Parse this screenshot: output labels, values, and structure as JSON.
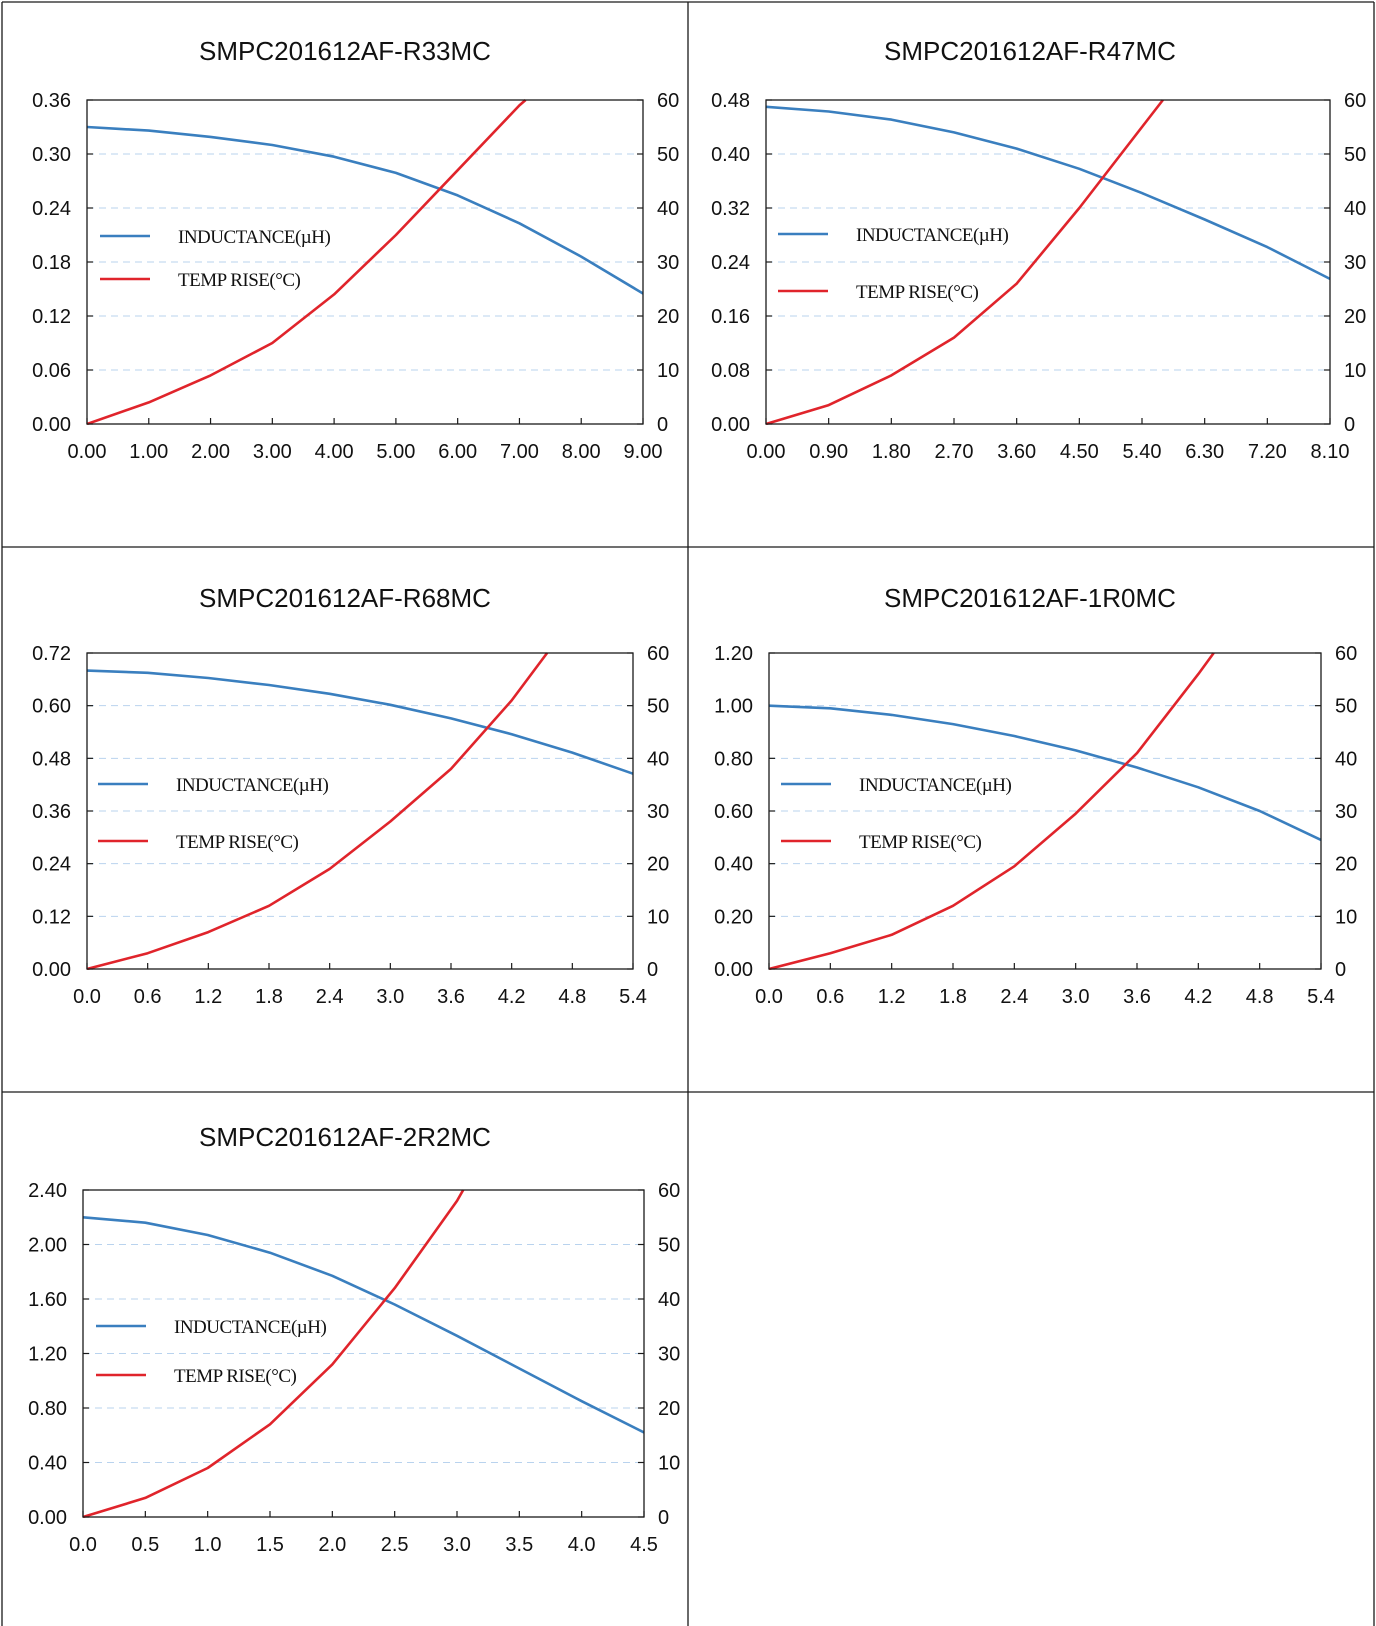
{
  "chart_data": [
    {
      "type": "line",
      "title": "SMPC201612AF-R33MC",
      "xlim": [
        0,
        9
      ],
      "x_ticks": [
        "0.00",
        "1.00",
        "2.00",
        "3.00",
        "4.00",
        "5.00",
        "6.00",
        "7.00",
        "8.00",
        "9.00"
      ],
      "ylim_left": [
        0,
        0.36
      ],
      "y_left_ticks": [
        "0.00",
        "0.06",
        "0.12",
        "0.18",
        "0.24",
        "0.30",
        "0.36"
      ],
      "ylim_right": [
        0,
        60
      ],
      "y_right_ticks": [
        "0",
        "10",
        "20",
        "30",
        "40",
        "50",
        "60"
      ],
      "legend": {
        "position": "left-middle",
        "inductance_label": "INDUCTANCE(µH)",
        "temp_label": "TEMP RISE(°C)"
      },
      "grid": "horizontal-dashed",
      "series": [
        {
          "name": "INDUCTANCE(µH)",
          "axis": "left",
          "color": "#3a7fbf",
          "x": [
            0,
            1,
            2,
            3,
            4,
            5,
            6,
            7,
            8,
            9
          ],
          "y": [
            0.33,
            0.326,
            0.319,
            0.31,
            0.297,
            0.279,
            0.254,
            0.223,
            0.186,
            0.145
          ]
        },
        {
          "name": "TEMP RISE(°C)",
          "axis": "right",
          "color": "#e0242b",
          "x": [
            0,
            1,
            2,
            3,
            4,
            5,
            6,
            7,
            7.1
          ],
          "y": [
            0,
            4,
            9,
            15,
            24,
            35,
            47,
            59,
            60
          ]
        }
      ]
    },
    {
      "type": "line",
      "title": "SMPC201612AF-R47MC",
      "xlim": [
        0,
        8.1
      ],
      "x_ticks": [
        "0.00",
        "0.90",
        "1.80",
        "2.70",
        "3.60",
        "4.50",
        "5.40",
        "6.30",
        "7.20",
        "8.10"
      ],
      "ylim_left": [
        0,
        0.48
      ],
      "y_left_ticks": [
        "0.00",
        "0.08",
        "0.16",
        "0.24",
        "0.32",
        "0.40",
        "0.48"
      ],
      "ylim_right": [
        0,
        60
      ],
      "y_right_ticks": [
        "0",
        "10",
        "20",
        "30",
        "40",
        "50",
        "60"
      ],
      "legend": {
        "position": "left-middle",
        "inductance_label": "INDUCTANCE(µH)",
        "temp_label": "TEMP RISE(°C)"
      },
      "grid": "horizontal-dashed",
      "series": [
        {
          "name": "INDUCTANCE(µH)",
          "axis": "left",
          "color": "#3a7fbf",
          "x": [
            0,
            0.9,
            1.8,
            2.7,
            3.6,
            4.5,
            5.4,
            6.3,
            7.2,
            8.1
          ],
          "y": [
            0.47,
            0.463,
            0.451,
            0.432,
            0.408,
            0.378,
            0.342,
            0.303,
            0.262,
            0.215
          ]
        },
        {
          "name": "TEMP RISE(°C)",
          "axis": "right",
          "color": "#e0242b",
          "x": [
            0,
            0.9,
            1.8,
            2.7,
            3.6,
            4.5,
            5.4,
            5.7
          ],
          "y": [
            0,
            3.5,
            9,
            16,
            26,
            40,
            55,
            60
          ]
        }
      ]
    },
    {
      "type": "line",
      "title": "SMPC201612AF-R68MC",
      "xlim": [
        0,
        5.4
      ],
      "x_ticks": [
        "0.0",
        "0.6",
        "1.2",
        "1.8",
        "2.4",
        "3.0",
        "3.6",
        "4.2",
        "4.8",
        "5.4"
      ],
      "ylim_left": [
        0,
        0.72
      ],
      "y_left_ticks": [
        "0.00",
        "0.12",
        "0.24",
        "0.36",
        "0.48",
        "0.60",
        "0.72"
      ],
      "ylim_right": [
        0,
        60
      ],
      "y_right_ticks": [
        "0",
        "10",
        "20",
        "30",
        "40",
        "50",
        "60"
      ],
      "legend": {
        "position": "left-middle",
        "inductance_label": "INDUCTANCE(µH)",
        "temp_label": "TEMP RISE(°C)"
      },
      "grid": "horizontal-dashed",
      "series": [
        {
          "name": "INDUCTANCE(µH)",
          "axis": "left",
          "color": "#3a7fbf",
          "x": [
            0,
            0.6,
            1.2,
            1.8,
            2.4,
            3.0,
            3.6,
            4.2,
            4.8,
            5.4
          ],
          "y": [
            0.68,
            0.675,
            0.663,
            0.647,
            0.627,
            0.602,
            0.571,
            0.535,
            0.493,
            0.445
          ]
        },
        {
          "name": "TEMP RISE(°C)",
          "axis": "right",
          "color": "#e0242b",
          "x": [
            0,
            0.6,
            1.2,
            1.8,
            2.4,
            3.0,
            3.6,
            4.2,
            4.55
          ],
          "y": [
            0,
            3,
            7,
            12,
            19,
            28,
            38,
            51,
            60
          ]
        }
      ]
    },
    {
      "type": "line",
      "title": "SMPC201612AF-1R0MC",
      "xlim": [
        0,
        5.4
      ],
      "x_ticks": [
        "0.0",
        "0.6",
        "1.2",
        "1.8",
        "2.4",
        "3.0",
        "3.6",
        "4.2",
        "4.8",
        "5.4"
      ],
      "ylim_left": [
        0,
        1.2
      ],
      "y_left_ticks": [
        "0.00",
        "0.20",
        "0.40",
        "0.60",
        "0.80",
        "1.00",
        "1.20"
      ],
      "ylim_right": [
        0,
        60
      ],
      "y_right_ticks": [
        "0",
        "10",
        "20",
        "30",
        "40",
        "50",
        "60"
      ],
      "legend": {
        "position": "left-middle",
        "inductance_label": "INDUCTANCE(µH)",
        "temp_label": "TEMP RISE(°C)"
      },
      "grid": "horizontal-dashed",
      "series": [
        {
          "name": "INDUCTANCE(µH)",
          "axis": "left",
          "color": "#3a7fbf",
          "x": [
            0,
            0.6,
            1.2,
            1.8,
            2.4,
            3.0,
            3.6,
            4.2,
            4.8,
            5.4
          ],
          "y": [
            1.0,
            0.99,
            0.965,
            0.93,
            0.885,
            0.83,
            0.765,
            0.69,
            0.6,
            0.49
          ]
        },
        {
          "name": "TEMP RISE(°C)",
          "axis": "right",
          "color": "#e0242b",
          "x": [
            0,
            0.6,
            1.2,
            1.8,
            2.4,
            3.0,
            3.6,
            4.2,
            4.35
          ],
          "y": [
            0,
            3,
            6.5,
            12,
            19.5,
            29.5,
            41,
            56,
            60
          ]
        }
      ]
    },
    {
      "type": "line",
      "title": "SMPC201612AF-2R2MC",
      "xlim": [
        0,
        4.5
      ],
      "x_ticks": [
        "0.0",
        "0.5",
        "1.0",
        "1.5",
        "2.0",
        "2.5",
        "3.0",
        "3.5",
        "4.0",
        "4.5"
      ],
      "ylim_left": [
        0,
        2.4
      ],
      "y_left_ticks": [
        "0.00",
        "0.40",
        "0.80",
        "1.20",
        "1.60",
        "2.00",
        "2.40"
      ],
      "ylim_right": [
        0,
        60
      ],
      "y_right_ticks": [
        "0",
        "10",
        "20",
        "30",
        "40",
        "50",
        "60"
      ],
      "legend": {
        "position": "left-middle",
        "inductance_label": "INDUCTANCE(µH)",
        "temp_label": "TEMP RISE(°C)"
      },
      "grid": "horizontal-dashed",
      "series": [
        {
          "name": "INDUCTANCE(µH)",
          "axis": "left",
          "color": "#3a7fbf",
          "x": [
            0,
            0.5,
            1.0,
            1.5,
            2.0,
            2.5,
            3.0,
            3.5,
            4.0,
            4.5
          ],
          "y": [
            2.2,
            2.16,
            2.07,
            1.94,
            1.77,
            1.56,
            1.33,
            1.09,
            0.85,
            0.62
          ]
        },
        {
          "name": "TEMP RISE(°C)",
          "axis": "right",
          "color": "#e0242b",
          "x": [
            0,
            0.5,
            1.0,
            1.5,
            2.0,
            2.5,
            3.0,
            3.05
          ],
          "y": [
            0,
            3.5,
            9,
            17,
            28,
            42,
            58,
            60
          ]
        }
      ]
    }
  ]
}
